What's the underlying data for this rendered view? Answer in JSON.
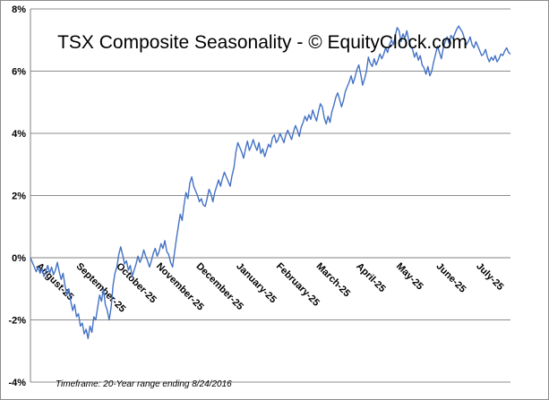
{
  "chart_data": {
    "type": "line",
    "title": "TSX Composite Seasonality - © EquityClock.com",
    "footnote": "Timeframe: 20-Year range ending 8/24/2016",
    "xlabel": "",
    "ylabel": "",
    "ylim": [
      -4,
      8
    ],
    "y_ticks": [
      "-4%",
      "-2%",
      "0%",
      "2%",
      "4%",
      "6%",
      "8%"
    ],
    "y_tick_values": [
      -4,
      -2,
      0,
      2,
      4,
      6,
      8
    ],
    "x_tick_labels": [
      "August-25",
      "September-25",
      "October-25",
      "November-25",
      "December-25",
      "January-25",
      "February-25",
      "March-25",
      "April-25",
      "May-25",
      "June-25",
      "July-25"
    ],
    "grid": "horizontal",
    "legend": "none",
    "line_color": "#4472c4",
    "series": [
      {
        "x": [
          0,
          1,
          2,
          3,
          4,
          5,
          6,
          7,
          8,
          9,
          10,
          11,
          12,
          13,
          14,
          15,
          16,
          17,
          18,
          19,
          20,
          21,
          22,
          23,
          24,
          25,
          26,
          27,
          28,
          29,
          30,
          31,
          32,
          33,
          34,
          35,
          36,
          37,
          38,
          39,
          40,
          41,
          42,
          43,
          44,
          45,
          46,
          47,
          48,
          49,
          50,
          51,
          52,
          53,
          54,
          55,
          56,
          57,
          58,
          59,
          60,
          61,
          62,
          63,
          64,
          65,
          66,
          67,
          68,
          69,
          70,
          71,
          72,
          73,
          74,
          75,
          76,
          77,
          78,
          79,
          80,
          81,
          82,
          83,
          84,
          85,
          86,
          87,
          88,
          89,
          90,
          91,
          92,
          93,
          94,
          95,
          96,
          97,
          98,
          99,
          100,
          101,
          102,
          103,
          104,
          105,
          106,
          107,
          108,
          109,
          110,
          111,
          112,
          113,
          114,
          115,
          116,
          117,
          118,
          119,
          120,
          121,
          122,
          123,
          124,
          125,
          126,
          127,
          128,
          129,
          130,
          131,
          132,
          133,
          134,
          135,
          136,
          137,
          138,
          139,
          140,
          141,
          142,
          143,
          144,
          145,
          146,
          147,
          148,
          149,
          150,
          151,
          152,
          153,
          154,
          155,
          156,
          157,
          158,
          159,
          160,
          161,
          162,
          163,
          164,
          165,
          166,
          167,
          168,
          169,
          170,
          171,
          172,
          173,
          174,
          175,
          176,
          177,
          178,
          179,
          180,
          181,
          182,
          183,
          184,
          185,
          186,
          187,
          188,
          189,
          190,
          191,
          192,
          193,
          194,
          195,
          196,
          197,
          198,
          199,
          200,
          201,
          202,
          203,
          204,
          205,
          206,
          207,
          208,
          209,
          210,
          211,
          212,
          213,
          214,
          215,
          216,
          217,
          218,
          219,
          220,
          221,
          222,
          223,
          224,
          225,
          226,
          227,
          228,
          229,
          230,
          231,
          232,
          233,
          234,
          235,
          236,
          237,
          238,
          239,
          240,
          241,
          242,
          243,
          244,
          245,
          246,
          247,
          248,
          249,
          250
        ],
        "values": [
          0.0,
          -0.15,
          -0.3,
          -0.45,
          -0.3,
          -0.5,
          -0.35,
          -0.6,
          -0.45,
          -0.25,
          -0.5,
          -0.3,
          -0.55,
          -0.4,
          -0.15,
          -0.45,
          -0.7,
          -0.5,
          -0.9,
          -1.2,
          -1.0,
          -1.4,
          -1.7,
          -1.5,
          -1.9,
          -1.8,
          -2.2,
          -2.1,
          -2.45,
          -2.3,
          -2.6,
          -2.2,
          -2.4,
          -1.9,
          -2.0,
          -1.6,
          -1.2,
          -1.4,
          -1.0,
          -1.5,
          -1.7,
          -2.0,
          -1.6,
          -0.9,
          -0.5,
          -0.3,
          0.1,
          0.35,
          0.1,
          -0.2,
          -0.1,
          -0.4,
          -0.25,
          -0.6,
          -0.4,
          -0.2,
          0.05,
          -0.15,
          0.0,
          0.25,
          0.05,
          -0.1,
          -0.3,
          -0.1,
          0.15,
          0.3,
          0.05,
          0.2,
          0.45,
          0.3,
          0.55,
          0.2,
          0.1,
          -0.15,
          -0.3,
          0.15,
          0.6,
          1.0,
          1.4,
          1.2,
          1.7,
          2.1,
          1.9,
          2.4,
          2.6,
          2.3,
          2.15,
          2.0,
          1.8,
          1.9,
          1.7,
          1.65,
          1.9,
          2.2,
          2.05,
          1.8,
          2.1,
          2.3,
          2.5,
          2.3,
          2.55,
          2.75,
          2.6,
          2.45,
          2.3,
          2.65,
          2.9,
          3.4,
          3.7,
          3.55,
          3.4,
          3.2,
          3.5,
          3.75,
          3.45,
          3.6,
          3.8,
          3.6,
          3.45,
          3.7,
          3.35,
          3.5,
          3.25,
          3.45,
          3.65,
          3.55,
          3.85,
          3.95,
          3.7,
          3.8,
          4.0,
          3.85,
          3.7,
          3.95,
          4.1,
          3.95,
          3.8,
          4.05,
          4.25,
          4.1,
          3.9,
          4.2,
          4.35,
          4.55,
          4.4,
          4.6,
          4.45,
          4.75,
          4.55,
          4.4,
          4.7,
          4.95,
          4.85,
          4.5,
          4.3,
          4.55,
          4.35,
          4.7,
          4.9,
          5.15,
          5.3,
          5.1,
          4.85,
          5.05,
          5.35,
          5.5,
          5.65,
          5.85,
          5.6,
          5.8,
          6.05,
          6.2,
          5.9,
          5.55,
          5.75,
          6.0,
          6.45,
          6.25,
          6.15,
          6.4,
          6.2,
          6.35,
          6.55,
          6.4,
          6.55,
          6.75,
          6.6,
          6.85,
          7.0,
          6.85,
          7.15,
          7.4,
          7.3,
          6.95,
          7.2,
          7.05,
          7.3,
          7.0,
          6.8,
          6.7,
          6.45,
          6.6,
          6.35,
          6.5,
          6.2,
          6.1,
          5.9,
          6.15,
          5.85,
          6.0,
          6.3,
          6.55,
          6.8,
          6.6,
          6.4,
          6.75,
          6.95,
          7.1,
          6.9,
          7.15,
          7.05,
          7.2,
          7.35,
          7.45,
          7.35,
          7.25,
          7.05,
          6.85,
          6.95,
          7.1,
          6.85,
          6.75,
          6.95,
          6.8,
          6.65,
          6.5,
          6.55,
          6.7,
          6.45,
          6.3,
          6.45,
          6.35,
          6.5,
          6.3,
          6.4,
          6.55,
          6.5,
          6.65,
          6.75,
          6.6,
          6.55
        ]
      }
    ]
  }
}
